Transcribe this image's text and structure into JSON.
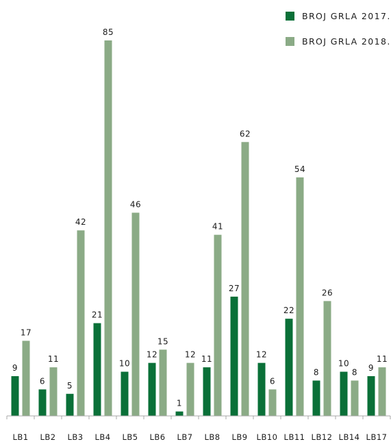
{
  "chart_data": {
    "type": "bar",
    "categories": [
      "LB1",
      "LB2",
      "LB3",
      "LB4",
      "LB5",
      "LB6",
      "LB7",
      "LB8",
      "LB9",
      "LB10",
      "LB11",
      "LB12",
      "LB14",
      "LB17"
    ],
    "series": [
      {
        "name": "BROJ GRLA 2017.",
        "values": [
          9,
          6,
          5,
          21,
          10,
          12,
          1,
          11,
          27,
          12,
          22,
          8,
          10,
          9
        ],
        "color": "#0a7038"
      },
      {
        "name": "BROJ GRLA 2018.",
        "values": [
          17,
          11,
          42,
          85,
          46,
          15,
          12,
          41,
          62,
          6,
          54,
          26,
          8,
          11
        ],
        "color": "#8bab86"
      }
    ],
    "ylim": [
      0,
      85
    ],
    "grid": false,
    "legend_position": "top-right",
    "data_labels": true
  }
}
